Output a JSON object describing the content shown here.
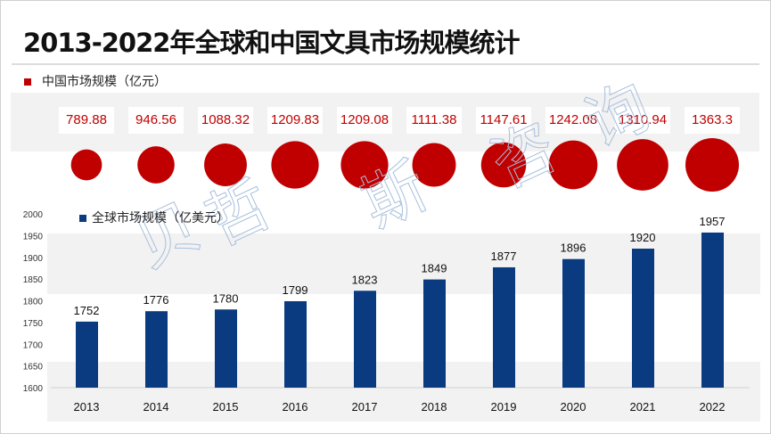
{
  "title": "2013-2022年全球和中国文具市场规模统计",
  "watermark": "贝哲斯咨询",
  "chart_data": [
    {
      "type": "bubble",
      "title": "中国市场规模（亿元）",
      "legend": "中国市场规模（亿元）",
      "categories": [
        "2013",
        "2014",
        "2015",
        "2016",
        "2017",
        "2018",
        "2019",
        "2020",
        "2021",
        "2022"
      ],
      "values": [
        789.88,
        946.56,
        1088.32,
        1209.83,
        1209.08,
        1111.38,
        1147.61,
        1242.08,
        1310.94,
        1363.3
      ],
      "labels": [
        "789.88",
        "946.56",
        "1088.32",
        "1209.83",
        "1209.08",
        "1111.38",
        "1147.61",
        "1242.08",
        "1310.94",
        "1363.3"
      ],
      "color": "#c00000"
    },
    {
      "type": "bar",
      "legend": "全球市场规模（亿美元）",
      "categories": [
        "2013",
        "2014",
        "2015",
        "2016",
        "2017",
        "2018",
        "2019",
        "2020",
        "2021",
        "2022"
      ],
      "values": [
        1752,
        1776,
        1780,
        1799,
        1823,
        1849,
        1877,
        1896,
        1920,
        1957
      ],
      "ylim": [
        1600,
        2000
      ],
      "yticks": [
        "1600",
        "1650",
        "1700",
        "1750",
        "1800",
        "1850",
        "1900",
        "1950",
        "2000"
      ],
      "color": "#0a3a80"
    }
  ]
}
